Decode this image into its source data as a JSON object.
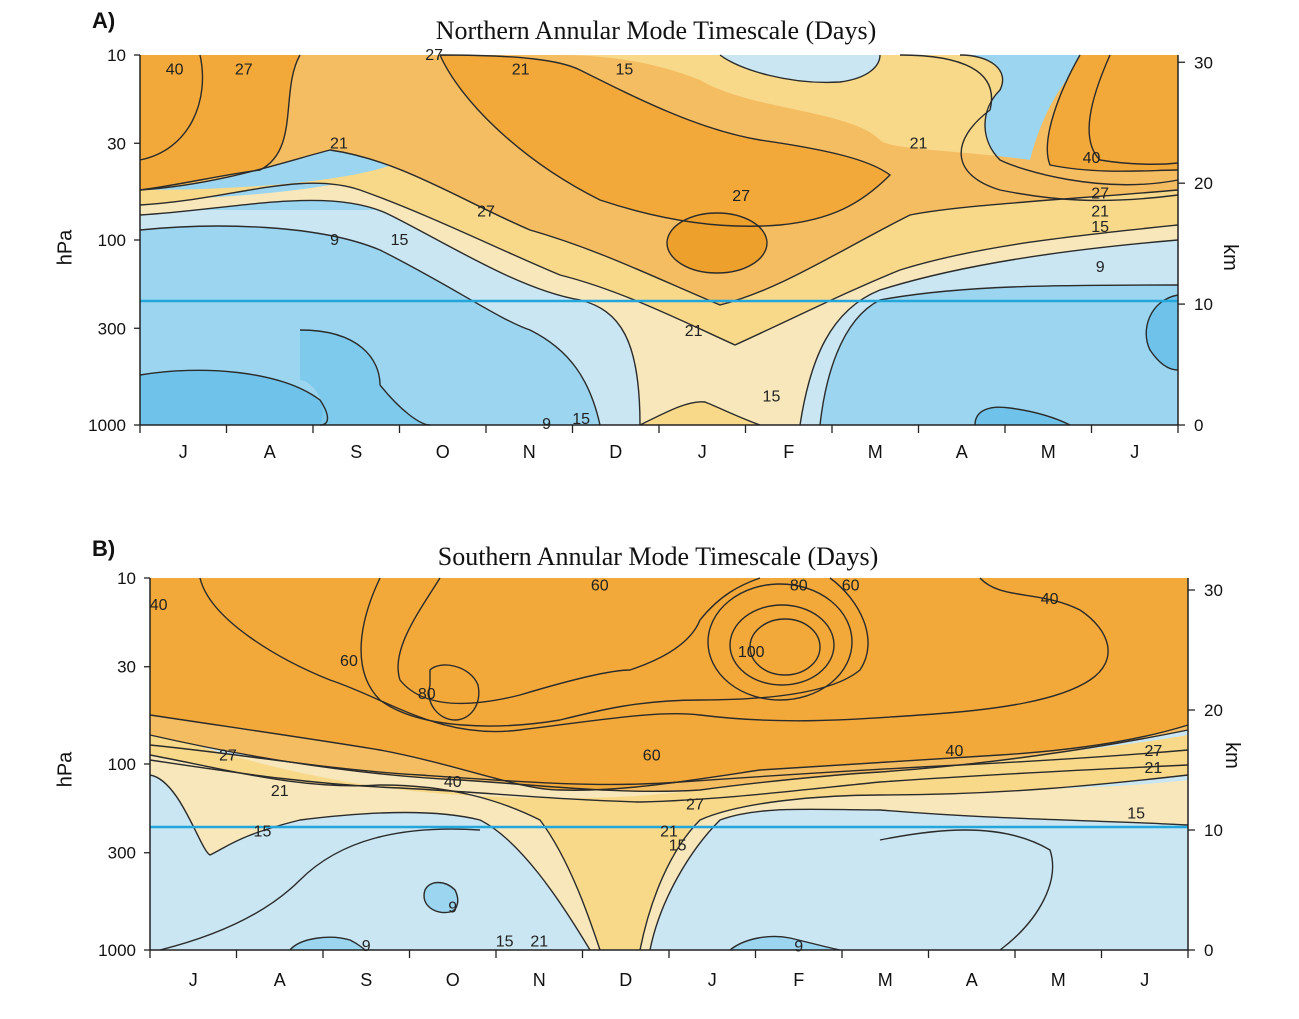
{
  "colors": {
    "deep_blue": "#6fc3ea",
    "mid_blue": "#9bd5ef",
    "light_blue": "#c9e6f2",
    "cream": "#f7e7bb",
    "light_yellow": "#f8d98a",
    "light_orange": "#f5bd62",
    "orange": "#f2a93a",
    "deep_orange": "#eda02c",
    "tropopause_line": "#23a6dc",
    "contour": "#2b2b2b"
  },
  "chart_data": [
    {
      "panel_label": "A)",
      "title": "Northern Annular Mode Timescale (Days)",
      "type": "heatmap",
      "ylabel": "hPa",
      "y2label": "km",
      "x_categories": [
        "J",
        "A",
        "S",
        "O",
        "N",
        "D",
        "J",
        "F",
        "M",
        "A",
        "M",
        "J"
      ],
      "y_ticks_hpa": [
        "10",
        "30",
        "100",
        "300",
        "1000"
      ],
      "y2_ticks_km": [
        "30",
        "20",
        "10",
        "0"
      ],
      "contour_levels_days": [
        9,
        15,
        21,
        27,
        40
      ],
      "contour_labels": [
        {
          "text": "40",
          "month": 0.4,
          "p": 12
        },
        {
          "text": "27",
          "month": 1.2,
          "p": 12
        },
        {
          "text": "27",
          "month": 3.4,
          "p": 10
        },
        {
          "text": "21",
          "month": 4.4,
          "p": 12
        },
        {
          "text": "15",
          "month": 5.6,
          "p": 12
        },
        {
          "text": "21",
          "month": 2.3,
          "p": 30
        },
        {
          "text": "21",
          "month": 9.0,
          "p": 30
        },
        {
          "text": "40",
          "month": 11.0,
          "p": 36
        },
        {
          "text": "27",
          "month": 4.0,
          "p": 70
        },
        {
          "text": "27",
          "month": 6.95,
          "p": 58
        },
        {
          "text": "27",
          "month": 11.1,
          "p": 56
        },
        {
          "text": "21",
          "month": 11.1,
          "p": 70
        },
        {
          "text": "15",
          "month": 11.1,
          "p": 85
        },
        {
          "text": "9",
          "month": 11.1,
          "p": 140
        },
        {
          "text": "9",
          "month": 2.25,
          "p": 100
        },
        {
          "text": "15",
          "month": 3.0,
          "p": 100
        },
        {
          "text": "21",
          "month": 6.4,
          "p": 310
        },
        {
          "text": "15",
          "month": 7.3,
          "p": 700
        },
        {
          "text": "9",
          "month": 4.7,
          "p": 990
        },
        {
          "text": "15",
          "month": 5.1,
          "p": 930
        }
      ],
      "tropopause_hpa": 200
    },
    {
      "panel_label": "B)",
      "title": "Southern Annular Mode Timescale (Days)",
      "type": "heatmap",
      "ylabel": "hPa",
      "y2label": "km",
      "x_categories": [
        "J",
        "A",
        "S",
        "O",
        "N",
        "D",
        "J",
        "F",
        "M",
        "A",
        "M",
        "J"
      ],
      "y_ticks_hpa": [
        "10",
        "30",
        "100",
        "300",
        "1000"
      ],
      "y2_ticks_km": [
        "30",
        "20",
        "10",
        "0"
      ],
      "contour_levels_days": [
        9,
        15,
        21,
        27,
        40,
        60,
        80,
        100
      ],
      "contour_labels": [
        {
          "text": "40",
          "month": 0.1,
          "p": 14
        },
        {
          "text": "60",
          "month": 5.2,
          "p": 11
        },
        {
          "text": "80",
          "month": 7.5,
          "p": 11
        },
        {
          "text": "60",
          "month": 8.1,
          "p": 11
        },
        {
          "text": "40",
          "month": 10.4,
          "p": 13
        },
        {
          "text": "100",
          "month": 6.95,
          "p": 25
        },
        {
          "text": "60",
          "month": 2.3,
          "p": 28
        },
        {
          "text": "80",
          "month": 3.2,
          "p": 42
        },
        {
          "text": "60",
          "month": 5.8,
          "p": 90
        },
        {
          "text": "40",
          "month": 9.3,
          "p": 85
        },
        {
          "text": "27",
          "month": 0.9,
          "p": 90
        },
        {
          "text": "27",
          "month": 11.6,
          "p": 85
        },
        {
          "text": "21",
          "month": 11.6,
          "p": 105
        },
        {
          "text": "21",
          "month": 1.5,
          "p": 140
        },
        {
          "text": "40",
          "month": 3.5,
          "p": 125
        },
        {
          "text": "27",
          "month": 6.3,
          "p": 165
        },
        {
          "text": "15",
          "month": 11.4,
          "p": 185
        },
        {
          "text": "15",
          "month": 1.3,
          "p": 230
        },
        {
          "text": "21",
          "month": 6.0,
          "p": 230
        },
        {
          "text": "15",
          "month": 6.1,
          "p": 275
        },
        {
          "text": "9",
          "month": 3.5,
          "p": 590
        },
        {
          "text": "15",
          "month": 4.1,
          "p": 900
        },
        {
          "text": "21",
          "month": 4.5,
          "p": 900
        },
        {
          "text": "9",
          "month": 2.5,
          "p": 950
        },
        {
          "text": "9",
          "month": 7.5,
          "p": 960
        }
      ],
      "tropopause_hpa": 200
    }
  ]
}
